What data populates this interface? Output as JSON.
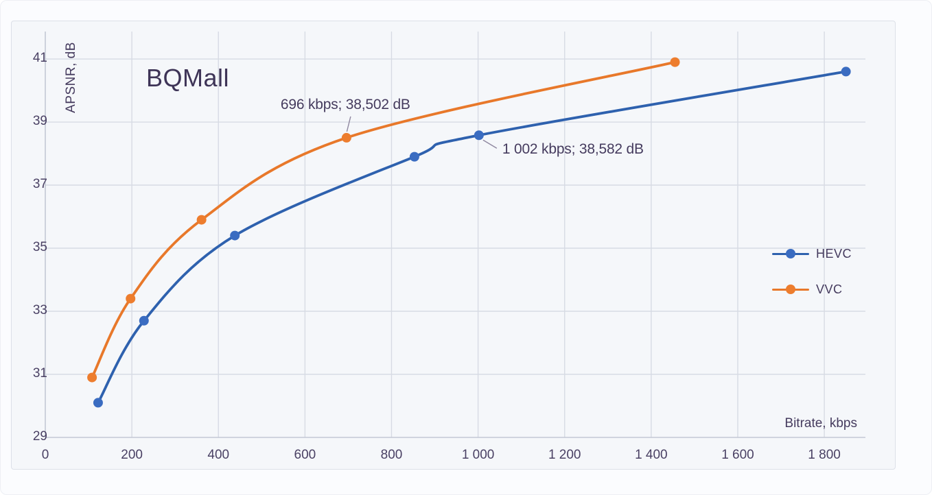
{
  "page": {
    "background": "#FBFCFE"
  },
  "colors": {
    "card_background": "#F5F7FA",
    "card_border": "#DCE0E8",
    "gridline": "#D7DBE4",
    "axis_line": "#C3C8D4",
    "text": "#453B5E",
    "hevc_blue": "#2E61AE",
    "hevc_marker": "#3A6CC1",
    "vvc_orange": "#E8782A",
    "vvc_marker": "#ED7D2E",
    "leader_line": "#8F87A0"
  },
  "chart_data": {
    "type": "line",
    "title": "BQMall",
    "xlabel": "Bitrate, kbps",
    "ylabel": "APSNR,  dB",
    "xlim": [
      0,
      1895
    ],
    "ylim": [
      29,
      41.87
    ],
    "grid": true,
    "line_style": "smooth",
    "legend_position": "right-middle",
    "x_ticks": [
      {
        "value": 0,
        "label": "0"
      },
      {
        "value": 200,
        "label": "200"
      },
      {
        "value": 400,
        "label": "400"
      },
      {
        "value": 600,
        "label": "600"
      },
      {
        "value": 800,
        "label": "800"
      },
      {
        "value": 1000,
        "label": "1 000"
      },
      {
        "value": 1200,
        "label": "1 200"
      },
      {
        "value": 1400,
        "label": "1 400"
      },
      {
        "value": 1600,
        "label": "1 600"
      },
      {
        "value": 1800,
        "label": "1 800"
      }
    ],
    "y_ticks": [
      {
        "value": 29,
        "label": "29"
      },
      {
        "value": 31,
        "label": "31"
      },
      {
        "value": 33,
        "label": "33"
      },
      {
        "value": 35,
        "label": "35"
      },
      {
        "value": 37,
        "label": "37"
      },
      {
        "value": 39,
        "label": "39"
      },
      {
        "value": 41,
        "label": "41"
      }
    ],
    "series": [
      {
        "name": "HEVC",
        "color": "#2E61AE",
        "marker_color": "#3A6CC1",
        "points": [
          {
            "x": 122,
            "y": 30.1
          },
          {
            "x": 228,
            "y": 32.7
          },
          {
            "x": 438,
            "y": 35.4
          },
          {
            "x": 853,
            "y": 37.9
          },
          {
            "x": 1002,
            "y": 38.582
          },
          {
            "x": 1850,
            "y": 40.6
          }
        ]
      },
      {
        "name": "VVC",
        "color": "#E8782A",
        "marker_color": "#ED7D2E",
        "points": [
          {
            "x": 108,
            "y": 30.9
          },
          {
            "x": 197,
            "y": 33.4
          },
          {
            "x": 361,
            "y": 35.9
          },
          {
            "x": 696,
            "y": 38.502
          },
          {
            "x": 1455,
            "y": 40.9
          }
        ]
      }
    ],
    "annotations": [
      {
        "text": "696 kbps; 38,502 dB",
        "series": "VVC",
        "x": 696,
        "y": 38.502,
        "placement": "above"
      },
      {
        "text": "1 002 kbps; 38,582 dB",
        "series": "HEVC",
        "x": 1002,
        "y": 38.582,
        "placement": "below-right"
      }
    ]
  }
}
